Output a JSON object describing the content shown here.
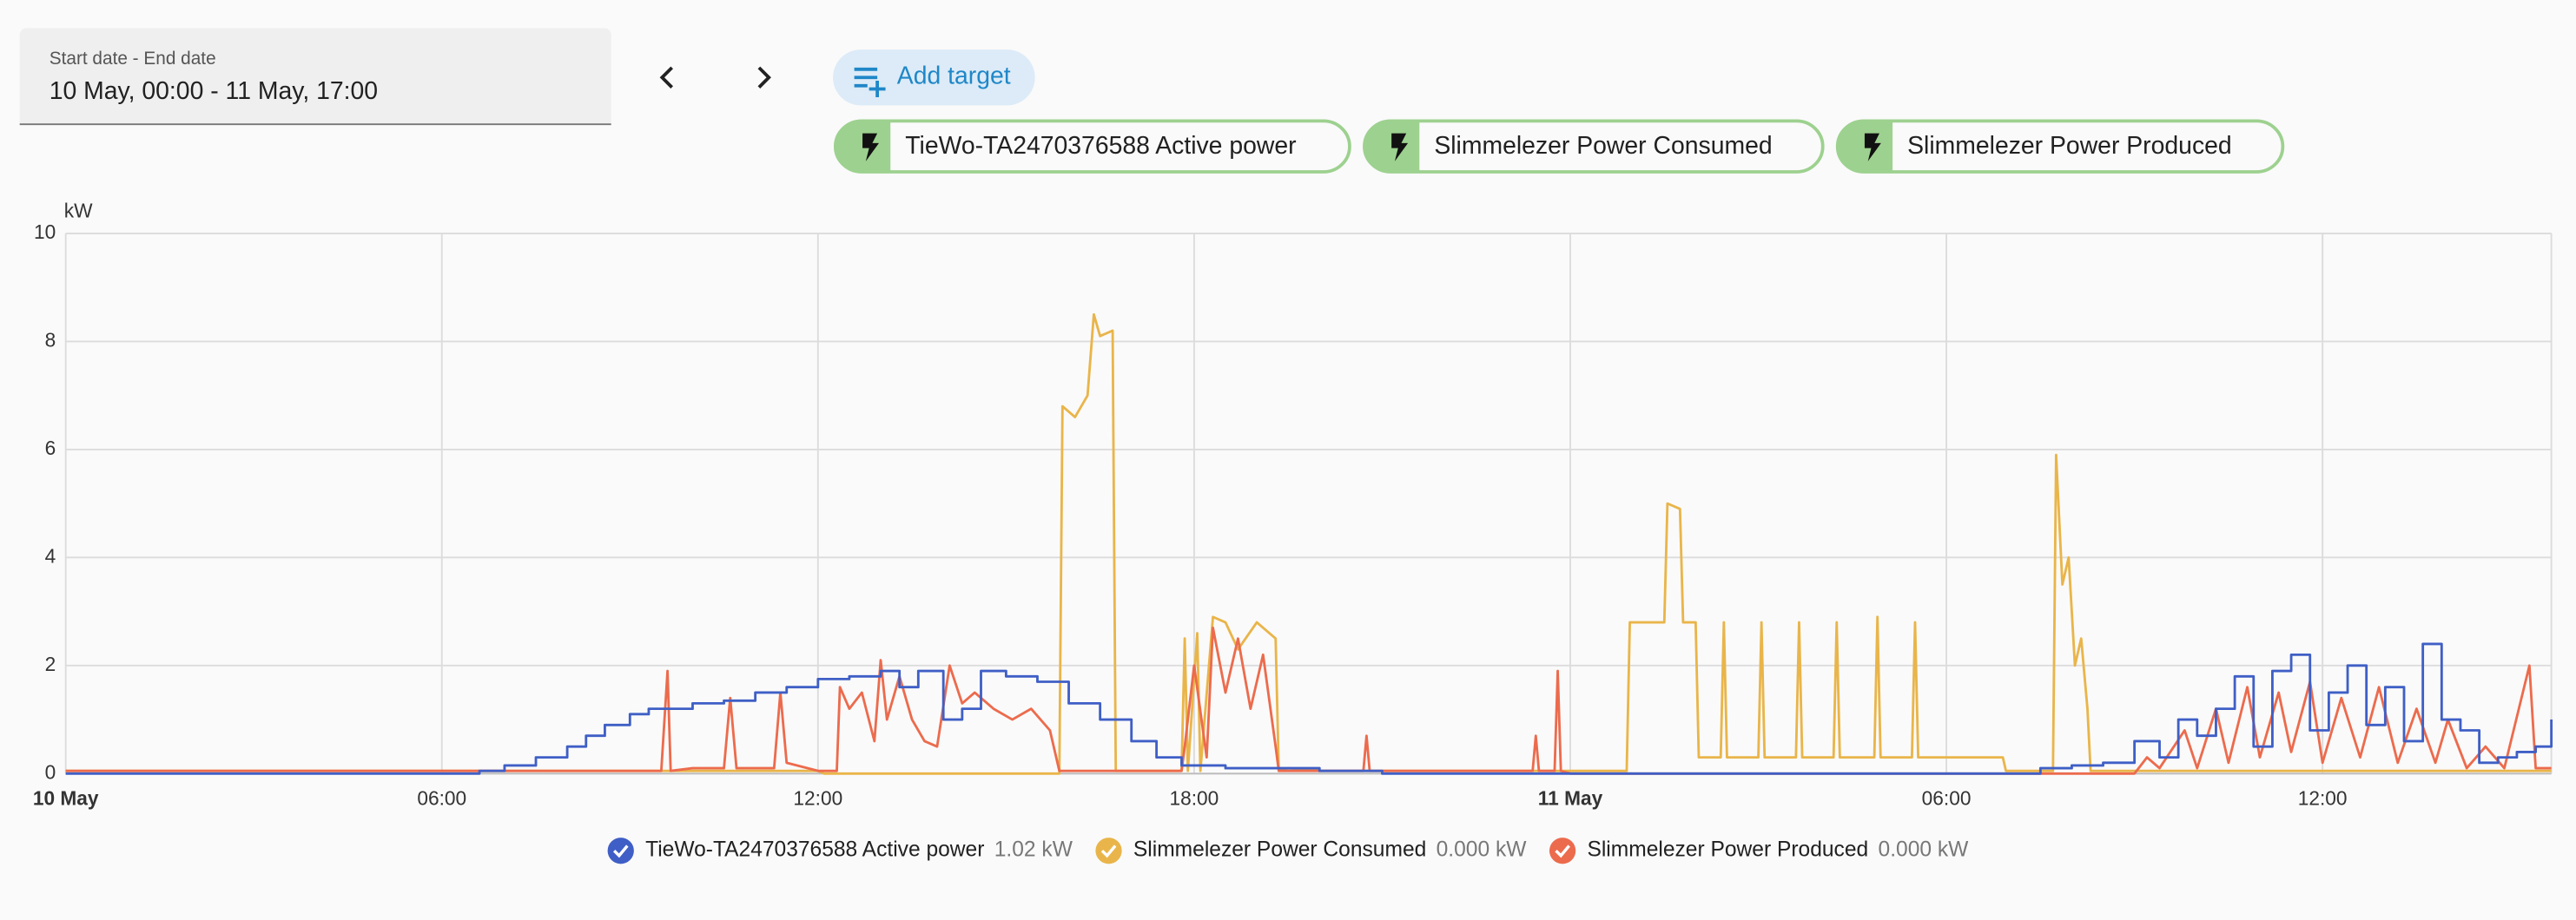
{
  "date_picker": {
    "label": "Start date - End date",
    "value": "10 May, 00:00 - 11 May, 17:00"
  },
  "add_target": "Add target",
  "targets": [
    "TieWo-TA2470376588 Active power",
    "Slimmelezer Power Consumed",
    "Slimmelezer Power Produced"
  ],
  "chart_data": {
    "type": "line",
    "y_unit": "kW",
    "xlim": [
      0,
      39.65
    ],
    "ylim": [
      0,
      10
    ],
    "yticks": [
      0,
      2,
      4,
      6,
      8,
      10
    ],
    "xticks": [
      {
        "value": 0,
        "label": "10 May"
      },
      {
        "value": 6,
        "label": "06:00"
      },
      {
        "value": 12,
        "label": "12:00"
      },
      {
        "value": 18,
        "label": "18:00"
      },
      {
        "value": 24,
        "label": "11 May"
      },
      {
        "value": 30,
        "label": "06:00"
      },
      {
        "value": 36,
        "label": "12:00"
      }
    ],
    "grid": true,
    "series": [
      {
        "name": "TieWo-TA2470376588 Active power",
        "color": "#3f5fc6",
        "state": "1.02 kW",
        "step": true,
        "x": [
          0,
          6.5,
          6.6,
          7,
          7.5,
          8,
          8.3,
          8.6,
          9,
          9.3,
          9.6,
          10,
          10.5,
          11,
          11.5,
          12,
          12.5,
          13,
          13.3,
          13.6,
          14,
          14.3,
          14.6,
          15,
          15.5,
          16,
          16.5,
          17,
          17.4,
          17.8,
          18.5,
          19.5,
          20,
          21,
          31,
          31.5,
          32,
          32.5,
          33,
          33.4,
          33.7,
          34,
          34.3,
          34.6,
          34.9,
          35.2,
          35.5,
          35.8,
          36.1,
          36.4,
          36.7,
          37,
          37.3,
          37.6,
          37.9,
          38.2,
          38.5,
          38.8,
          39.1,
          39.4,
          39.65
        ],
        "values": [
          0,
          0,
          0.05,
          0.15,
          0.3,
          0.5,
          0.7,
          0.9,
          1.1,
          1.2,
          1.2,
          1.3,
          1.35,
          1.5,
          1.6,
          1.75,
          1.8,
          1.9,
          1.6,
          1.9,
          1.0,
          1.2,
          1.9,
          1.8,
          1.7,
          1.3,
          1.0,
          0.6,
          0.3,
          0.15,
          0.1,
          0.1,
          0.05,
          0,
          0,
          0.1,
          0.15,
          0.2,
          0.6,
          0.3,
          1.0,
          0.7,
          1.2,
          1.8,
          0.5,
          1.9,
          2.2,
          0.8,
          1.5,
          2.0,
          0.9,
          1.6,
          0.6,
          2.4,
          1.0,
          0.8,
          0.2,
          0.3,
          0.4,
          0.5,
          1.0
        ]
      },
      {
        "name": "Slimmelezer Power Consumed",
        "color": "#e9b54a",
        "state": "0.000 kW",
        "step": false,
        "x": [
          0,
          12,
          12.1,
          15.85,
          15.9,
          16.1,
          16.3,
          16.4,
          16.5,
          16.7,
          16.75,
          17.8,
          17.85,
          17.9,
          18.05,
          18.1,
          18.3,
          18.5,
          18.7,
          19.0,
          19.3,
          19.35,
          19.5,
          20,
          24.9,
          24.95,
          25.5,
          25.55,
          25.75,
          25.8,
          26.0,
          26.05,
          26.4,
          26.45,
          26.5,
          27.0,
          27.05,
          27.1,
          27.6,
          27.65,
          27.7,
          28.2,
          28.25,
          28.3,
          28.85,
          28.9,
          28.95,
          29.45,
          29.5,
          29.55,
          30.9,
          30.95,
          31.7,
          31.75,
          31.85,
          31.95,
          32.05,
          32.15,
          32.25,
          32.3,
          39.65
        ],
        "values": [
          0.05,
          0.05,
          0,
          0,
          6.8,
          6.6,
          7.0,
          8.5,
          8.1,
          8.2,
          0.05,
          0.05,
          2.5,
          0.05,
          2.6,
          0.05,
          2.9,
          2.8,
          2.3,
          2.8,
          2.5,
          0.05,
          0.1,
          0.05,
          0.05,
          2.8,
          2.8,
          5.0,
          4.9,
          2.8,
          2.8,
          0.3,
          0.3,
          2.8,
          0.3,
          0.3,
          2.8,
          0.3,
          0.3,
          2.8,
          0.3,
          0.3,
          2.8,
          0.3,
          0.3,
          2.9,
          0.3,
          0.3,
          2.8,
          0.3,
          0.3,
          0.05,
          0.05,
          5.9,
          3.5,
          4.0,
          2.0,
          2.5,
          1.2,
          0.05,
          0.05
        ]
      },
      {
        "name": "Slimmelezer Power Produced",
        "color": "#ec6b4d",
        "state": "0.000 kW",
        "step": false,
        "x": [
          0,
          9.5,
          9.6,
          9.65,
          10,
          10.5,
          10.6,
          10.7,
          11.3,
          11.4,
          11.5,
          12,
          12.3,
          12.35,
          12.5,
          12.7,
          12.9,
          13.0,
          13.1,
          13.3,
          13.5,
          13.7,
          13.9,
          14.1,
          14.3,
          14.5,
          14.8,
          15.1,
          15.4,
          15.7,
          15.85,
          16.75,
          17.8,
          17.85,
          18.0,
          18.2,
          18.3,
          18.5,
          18.7,
          18.9,
          19.1,
          19.3,
          19.35,
          20.7,
          20.75,
          20.8,
          23.4,
          23.45,
          23.5,
          23.75,
          23.8,
          23.85,
          24,
          33,
          33.2,
          33.4,
          33.8,
          34,
          34.3,
          34.5,
          34.8,
          35,
          35.3,
          35.5,
          35.8,
          36,
          36.3,
          36.6,
          36.9,
          37.2,
          37.5,
          37.8,
          38.0,
          38.3,
          38.6,
          38.9,
          39.3,
          39.4,
          39.65
        ],
        "values": [
          0.05,
          0.05,
          1.9,
          0.05,
          0.1,
          0.1,
          1.4,
          0.1,
          0.1,
          1.5,
          0.2,
          0.05,
          0.05,
          1.6,
          1.2,
          1.5,
          0.6,
          2.1,
          1.0,
          1.8,
          1.0,
          0.6,
          0.5,
          2.0,
          1.3,
          1.5,
          1.2,
          1.0,
          1.2,
          0.8,
          0.05,
          0.05,
          0.05,
          0.5,
          2.0,
          0.3,
          2.7,
          1.5,
          2.5,
          1.2,
          2.2,
          0.5,
          0.05,
          0.05,
          0.7,
          0.05,
          0.05,
          0.7,
          0.05,
          0.05,
          1.9,
          0.05,
          0,
          0,
          0.3,
          0.1,
          0.8,
          0.1,
          1.2,
          0.2,
          1.6,
          0.3,
          1.5,
          0.4,
          1.7,
          0.2,
          1.4,
          0.3,
          1.6,
          0.2,
          1.2,
          0.2,
          1.0,
          0.1,
          0.5,
          0.1,
          2.0,
          0.1,
          0.1
        ]
      }
    ]
  }
}
